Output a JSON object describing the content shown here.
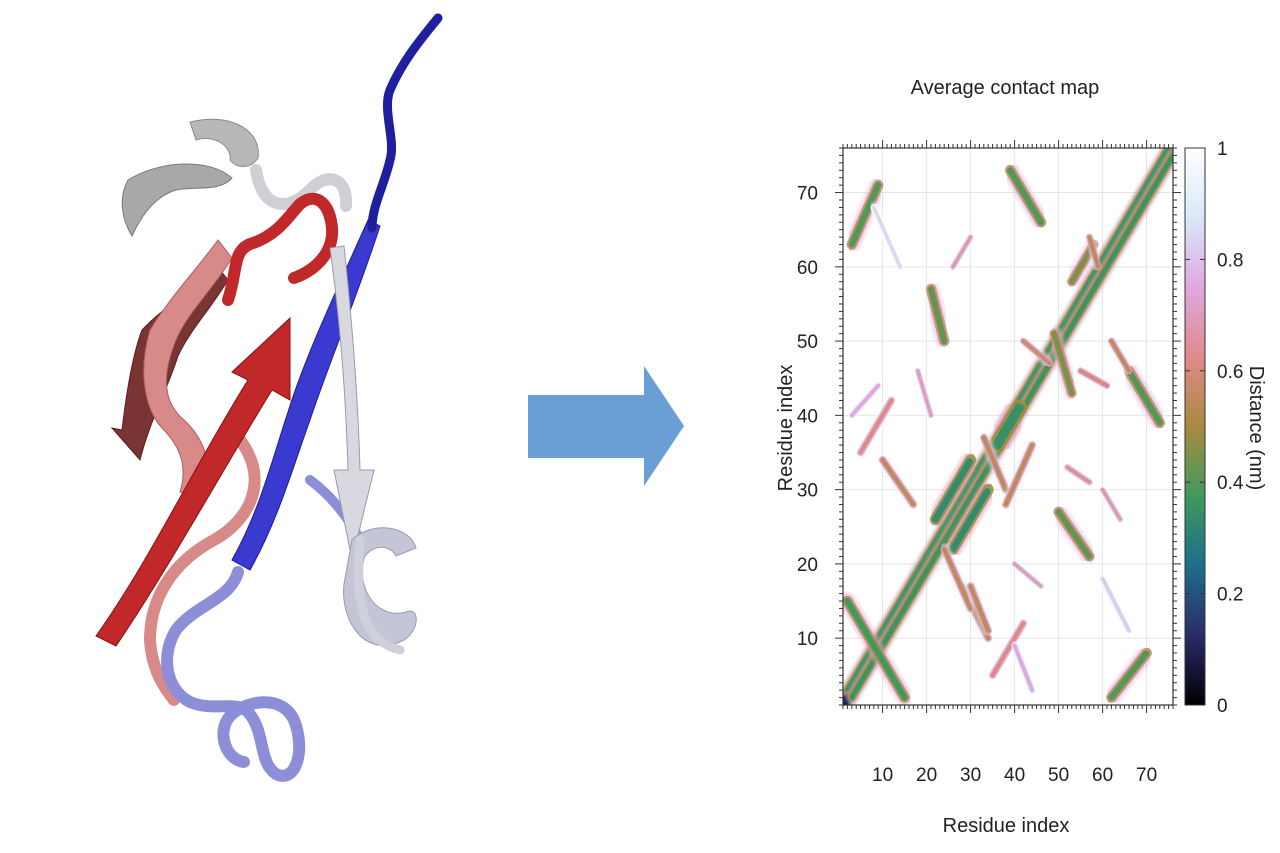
{
  "figure": {
    "arrow_color": "#6a9fd6",
    "protein_colors": {
      "n_terminus": "#1e1e9e",
      "blue_strand": "#3a3ad0",
      "light_blue_loop": "#8c8fd8",
      "white_loop": "#d8d8e0",
      "gray_turn": "#b8b8b8",
      "red_strand": "#c0282a",
      "pink_strand": "#d88a88",
      "dark_red_strand": "#7a3434"
    }
  },
  "chart_data": {
    "type": "heatmap",
    "title": "Average contact map",
    "xlabel": "Residue index",
    "ylabel": "Residue index",
    "xlim": [
      1,
      76
    ],
    "ylim": [
      1,
      76
    ],
    "xticks": [
      10,
      20,
      30,
      40,
      50,
      60,
      70
    ],
    "yticks": [
      10,
      20,
      30,
      40,
      50,
      60,
      70
    ],
    "grid": true,
    "colorbar": {
      "label": "Distance (nm)",
      "range": [
        0,
        1
      ],
      "ticks": [
        0,
        0.2,
        0.4,
        0.6,
        0.8,
        1
      ],
      "tick_labels": [
        "0",
        "0.2",
        "0.4",
        "0.6",
        "0.8",
        "1"
      ],
      "colormap": [
        "#000000",
        "#2a2c6a",
        "#1e6e8a",
        "#3f9a5c",
        "#a88a40",
        "#e08a8a",
        "#e0a8e0",
        "#d8e8f8",
        "#ffffff"
      ]
    },
    "contacts": [
      {
        "x": [
          1,
          76
        ],
        "y": [
          1,
          76
        ],
        "distance": 0.08,
        "width": 1.6,
        "note": "diagonal"
      },
      {
        "x": [
          2,
          75
        ],
        "y": [
          3,
          76
        ],
        "distance": 0.36,
        "width": 1.1
      },
      {
        "x": [
          3,
          76
        ],
        "y": [
          2,
          75
        ],
        "distance": 0.36,
        "width": 1.1
      },
      {
        "x": [
          2,
          15
        ],
        "y": [
          15,
          2
        ],
        "distance": 0.38,
        "width": 1.4
      },
      {
        "x": [
          3,
          9
        ],
        "y": [
          63,
          71
        ],
        "distance": 0.4,
        "width": 1.4
      },
      {
        "x": [
          62,
          70
        ],
        "y": [
          2,
          8
        ],
        "distance": 0.4,
        "width": 1.4
      },
      {
        "x": [
          39,
          46
        ],
        "y": [
          73,
          66
        ],
        "distance": 0.4,
        "width": 1.4
      },
      {
        "x": [
          66,
          73
        ],
        "y": [
          46,
          39
        ],
        "distance": 0.4,
        "width": 1.4
      },
      {
        "x": [
          21,
          24
        ],
        "y": [
          57,
          50
        ],
        "distance": 0.42,
        "width": 1.4
      },
      {
        "x": [
          50,
          57
        ],
        "y": [
          27,
          21
        ],
        "distance": 0.42,
        "width": 1.4
      },
      {
        "x": [
          49,
          53
        ],
        "y": [
          51,
          43
        ],
        "distance": 0.45,
        "width": 1.3
      },
      {
        "x": [
          53,
          58
        ],
        "y": [
          58,
          63
        ],
        "distance": 0.45,
        "width": 1.3
      },
      {
        "x": [
          22,
          30
        ],
        "y": [
          26,
          34
        ],
        "distance": 0.33,
        "width": 1.5
      },
      {
        "x": [
          26,
          34
        ],
        "y": [
          22,
          30
        ],
        "distance": 0.33,
        "width": 1.5
      },
      {
        "x": [
          36,
          41
        ],
        "y": [
          36,
          41
        ],
        "distance": 0.35,
        "width": 2.2
      },
      {
        "x": [
          5,
          12
        ],
        "y": [
          35,
          42
        ],
        "distance": 0.62,
        "width": 1.0
      },
      {
        "x": [
          35,
          42
        ],
        "y": [
          5,
          12
        ],
        "distance": 0.62,
        "width": 1.0
      },
      {
        "x": [
          10,
          17
        ],
        "y": [
          34,
          28
        ],
        "distance": 0.55,
        "width": 1.0
      },
      {
        "x": [
          28,
          34
        ],
        "y": [
          17,
          10
        ],
        "distance": 0.55,
        "width": 1.0
      },
      {
        "x": [
          24,
          30
        ],
        "y": [
          22,
          14
        ],
        "distance": 0.55,
        "width": 1.0
      },
      {
        "x": [
          30,
          34
        ],
        "y": [
          17,
          11
        ],
        "distance": 0.55,
        "width": 1.0
      },
      {
        "x": [
          33,
          38
        ],
        "y": [
          37,
          30
        ],
        "distance": 0.55,
        "width": 1.0
      },
      {
        "x": [
          38,
          44
        ],
        "y": [
          28,
          36
        ],
        "distance": 0.55,
        "width": 1.0
      },
      {
        "x": [
          40,
          44
        ],
        "y": [
          9,
          3
        ],
        "distance": 0.75,
        "width": 0.9
      },
      {
        "x": [
          3,
          9
        ],
        "y": [
          40,
          44
        ],
        "distance": 0.75,
        "width": 0.9
      },
      {
        "x": [
          60,
          66
        ],
        "y": [
          18,
          11
        ],
        "distance": 0.82,
        "width": 0.9
      },
      {
        "x": [
          8,
          14
        ],
        "y": [
          68,
          60
        ],
        "distance": 0.85,
        "width": 0.9
      },
      {
        "x": [
          55,
          61
        ],
        "y": [
          46,
          44
        ],
        "distance": 0.6,
        "width": 0.9
      },
      {
        "x": [
          52,
          57
        ],
        "y": [
          33,
          31
        ],
        "distance": 0.65,
        "width": 0.9
      },
      {
        "x": [
          57,
          59
        ],
        "y": [
          64,
          60
        ],
        "distance": 0.55,
        "width": 0.9
      },
      {
        "x": [
          62,
          66
        ],
        "y": [
          50,
          46
        ],
        "distance": 0.55,
        "width": 0.9
      },
      {
        "x": [
          18,
          21
        ],
        "y": [
          46,
          40
        ],
        "distance": 0.7,
        "width": 0.8
      },
      {
        "x": [
          40,
          46
        ],
        "y": [
          20,
          17
        ],
        "distance": 0.7,
        "width": 0.8
      },
      {
        "x": [
          42,
          48
        ],
        "y": [
          50,
          47
        ],
        "distance": 0.58,
        "width": 0.9
      },
      {
        "x": [
          60,
          64
        ],
        "y": [
          30,
          26
        ],
        "distance": 0.68,
        "width": 0.8
      },
      {
        "x": [
          26,
          30
        ],
        "y": [
          60,
          64
        ],
        "distance": 0.68,
        "width": 0.8
      }
    ]
  }
}
